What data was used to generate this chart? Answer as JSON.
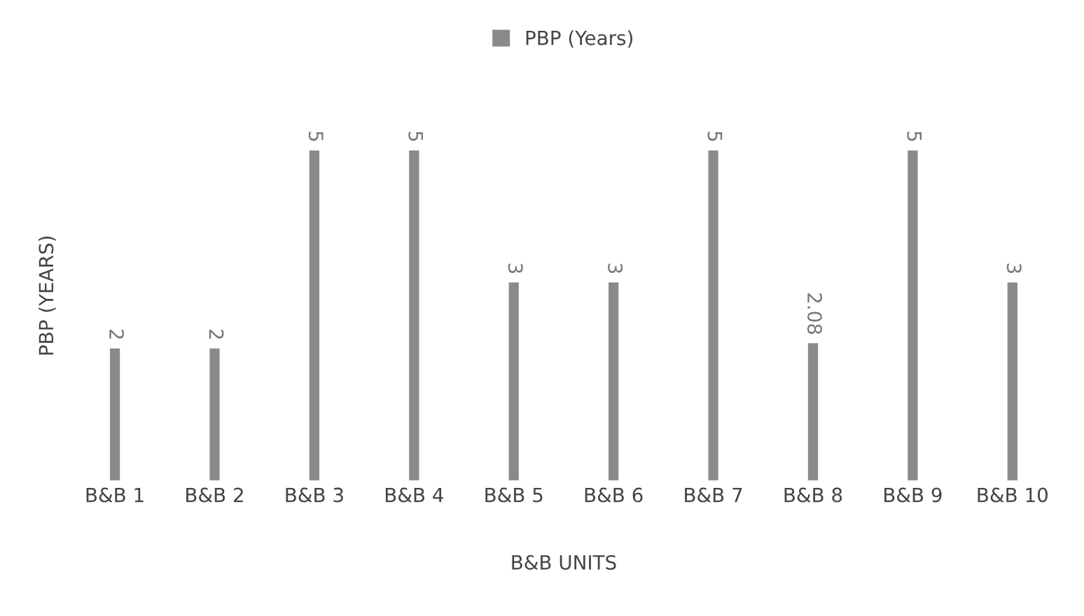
{
  "chart_data": {
    "type": "bar",
    "xlabel": "B&B UNITS",
    "ylabel": "PBP (YEARS)",
    "legend": "top",
    "categories": [
      "B&B 1",
      "B&B 2",
      "B&B 3",
      "B&B 4",
      "B&B 5",
      "B&B 6",
      "B&B 7",
      "B&B 8",
      "B&B 9",
      "B&B 10"
    ],
    "series": [
      {
        "name": "PBP (Years)",
        "color": "#8a8a8a",
        "values": [
          2,
          2,
          5,
          5,
          3,
          3,
          5,
          2.08,
          5,
          3
        ]
      }
    ],
    "data_labels": true,
    "tick_labels": "x",
    "grid": false
  }
}
